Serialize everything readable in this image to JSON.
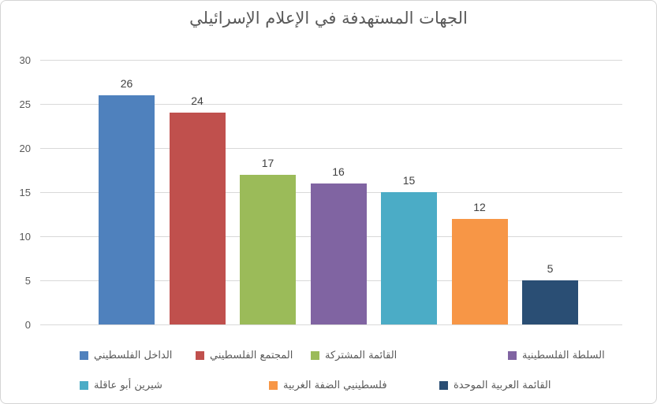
{
  "title": "الجهات المستهدفة في الإعلام الإسرائيلي",
  "chart_data": {
    "type": "bar",
    "title": "الجهات المستهدفة في الإعلام الإسرائيلي",
    "categories": [
      "الداخل الفلسطيني",
      "المجتمع الفلسطيني",
      "القائمة المشتركة",
      "السلطة الفلسطينية",
      "شيرين أبو عاقلة",
      "فلسطينيي الضفة الغربية",
      "القائمة العربية الموحدة"
    ],
    "values": [
      26,
      24,
      17,
      16,
      15,
      12,
      5
    ],
    "colors": [
      "#4f81bd",
      "#c0504d",
      "#9bbb59",
      "#8064a2",
      "#4bacc6",
      "#f79646",
      "#2a4e74"
    ],
    "xlabel": "",
    "ylabel": "",
    "ylim": [
      0,
      30
    ],
    "yticks": [
      0,
      5,
      10,
      15,
      20,
      25,
      30
    ],
    "grid": true,
    "data_labels": true,
    "legend_position": "bottom",
    "legend_rows": [
      [
        {
          "label": "الداخل الفلسطيني",
          "color": "#4f81bd"
        },
        {
          "label": "المجتمع الفلسطيني",
          "color": "#c0504d"
        },
        {
          "label": "القائمة المشتركة",
          "color": "#9bbb59"
        },
        {
          "label": "السلطة الفلسطينية",
          "color": "#8064a2"
        }
      ],
      [
        {
          "label": "شيرين أبو عاقلة",
          "color": "#4bacc6"
        },
        {
          "label": "فلسطينيي الضفة الغربية",
          "color": "#f79646"
        },
        {
          "label": "القائمة العربية الموحدة",
          "color": "#2a4e74"
        }
      ]
    ]
  }
}
